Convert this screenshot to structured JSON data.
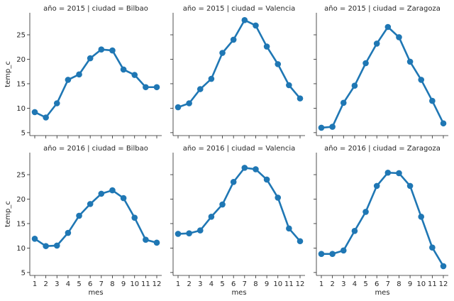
{
  "chart_data": {
    "type": "line",
    "figure_xlabel": "mes",
    "figure_ylabel": "temp_c",
    "x": [
      1,
      2,
      3,
      4,
      5,
      6,
      7,
      8,
      9,
      10,
      11,
      12
    ],
    "xticks": [
      "1",
      "2",
      "3",
      "4",
      "5",
      "6",
      "7",
      "8",
      "9",
      "10",
      "11",
      "12"
    ],
    "yticks": [
      5,
      10,
      15,
      20,
      25
    ],
    "ylim": [
      4.4,
      29.5
    ],
    "color": "#1f77b4",
    "markers": true,
    "grid": false,
    "panels": [
      {
        "title": "año = 2015 | ciudad = Bilbao",
        "values": [
          9.2,
          8.1,
          11.0,
          15.8,
          16.9,
          20.2,
          22.0,
          21.8,
          17.9,
          16.8,
          14.3,
          14.3
        ]
      },
      {
        "title": "año = 2015 | ciudad = Valencia",
        "values": [
          10.2,
          11.0,
          13.9,
          16.0,
          21.3,
          24.0,
          28.0,
          26.9,
          22.6,
          19.0,
          14.7,
          12.0
        ]
      },
      {
        "title": "año = 2015 | ciudad = Zaragoza",
        "values": [
          6.0,
          6.2,
          11.1,
          14.6,
          19.2,
          23.2,
          26.6,
          24.5,
          19.5,
          15.8,
          11.5,
          6.9
        ]
      },
      {
        "title": "año = 2016 | ciudad = Bilbao",
        "values": [
          11.9,
          10.4,
          10.5,
          13.1,
          16.6,
          19.0,
          21.1,
          21.8,
          20.2,
          16.2,
          11.7,
          11.1
        ]
      },
      {
        "title": "año = 2016 | ciudad = Valencia",
        "values": [
          12.9,
          13.0,
          13.6,
          16.4,
          18.9,
          23.5,
          26.4,
          26.1,
          24.0,
          20.3,
          14.0,
          11.4
        ]
      },
      {
        "title": "año = 2016 | ciudad = Zaragoza",
        "values": [
          8.8,
          8.8,
          9.5,
          13.5,
          17.4,
          22.7,
          25.4,
          25.3,
          22.7,
          16.4,
          10.1,
          6.3
        ]
      }
    ]
  }
}
